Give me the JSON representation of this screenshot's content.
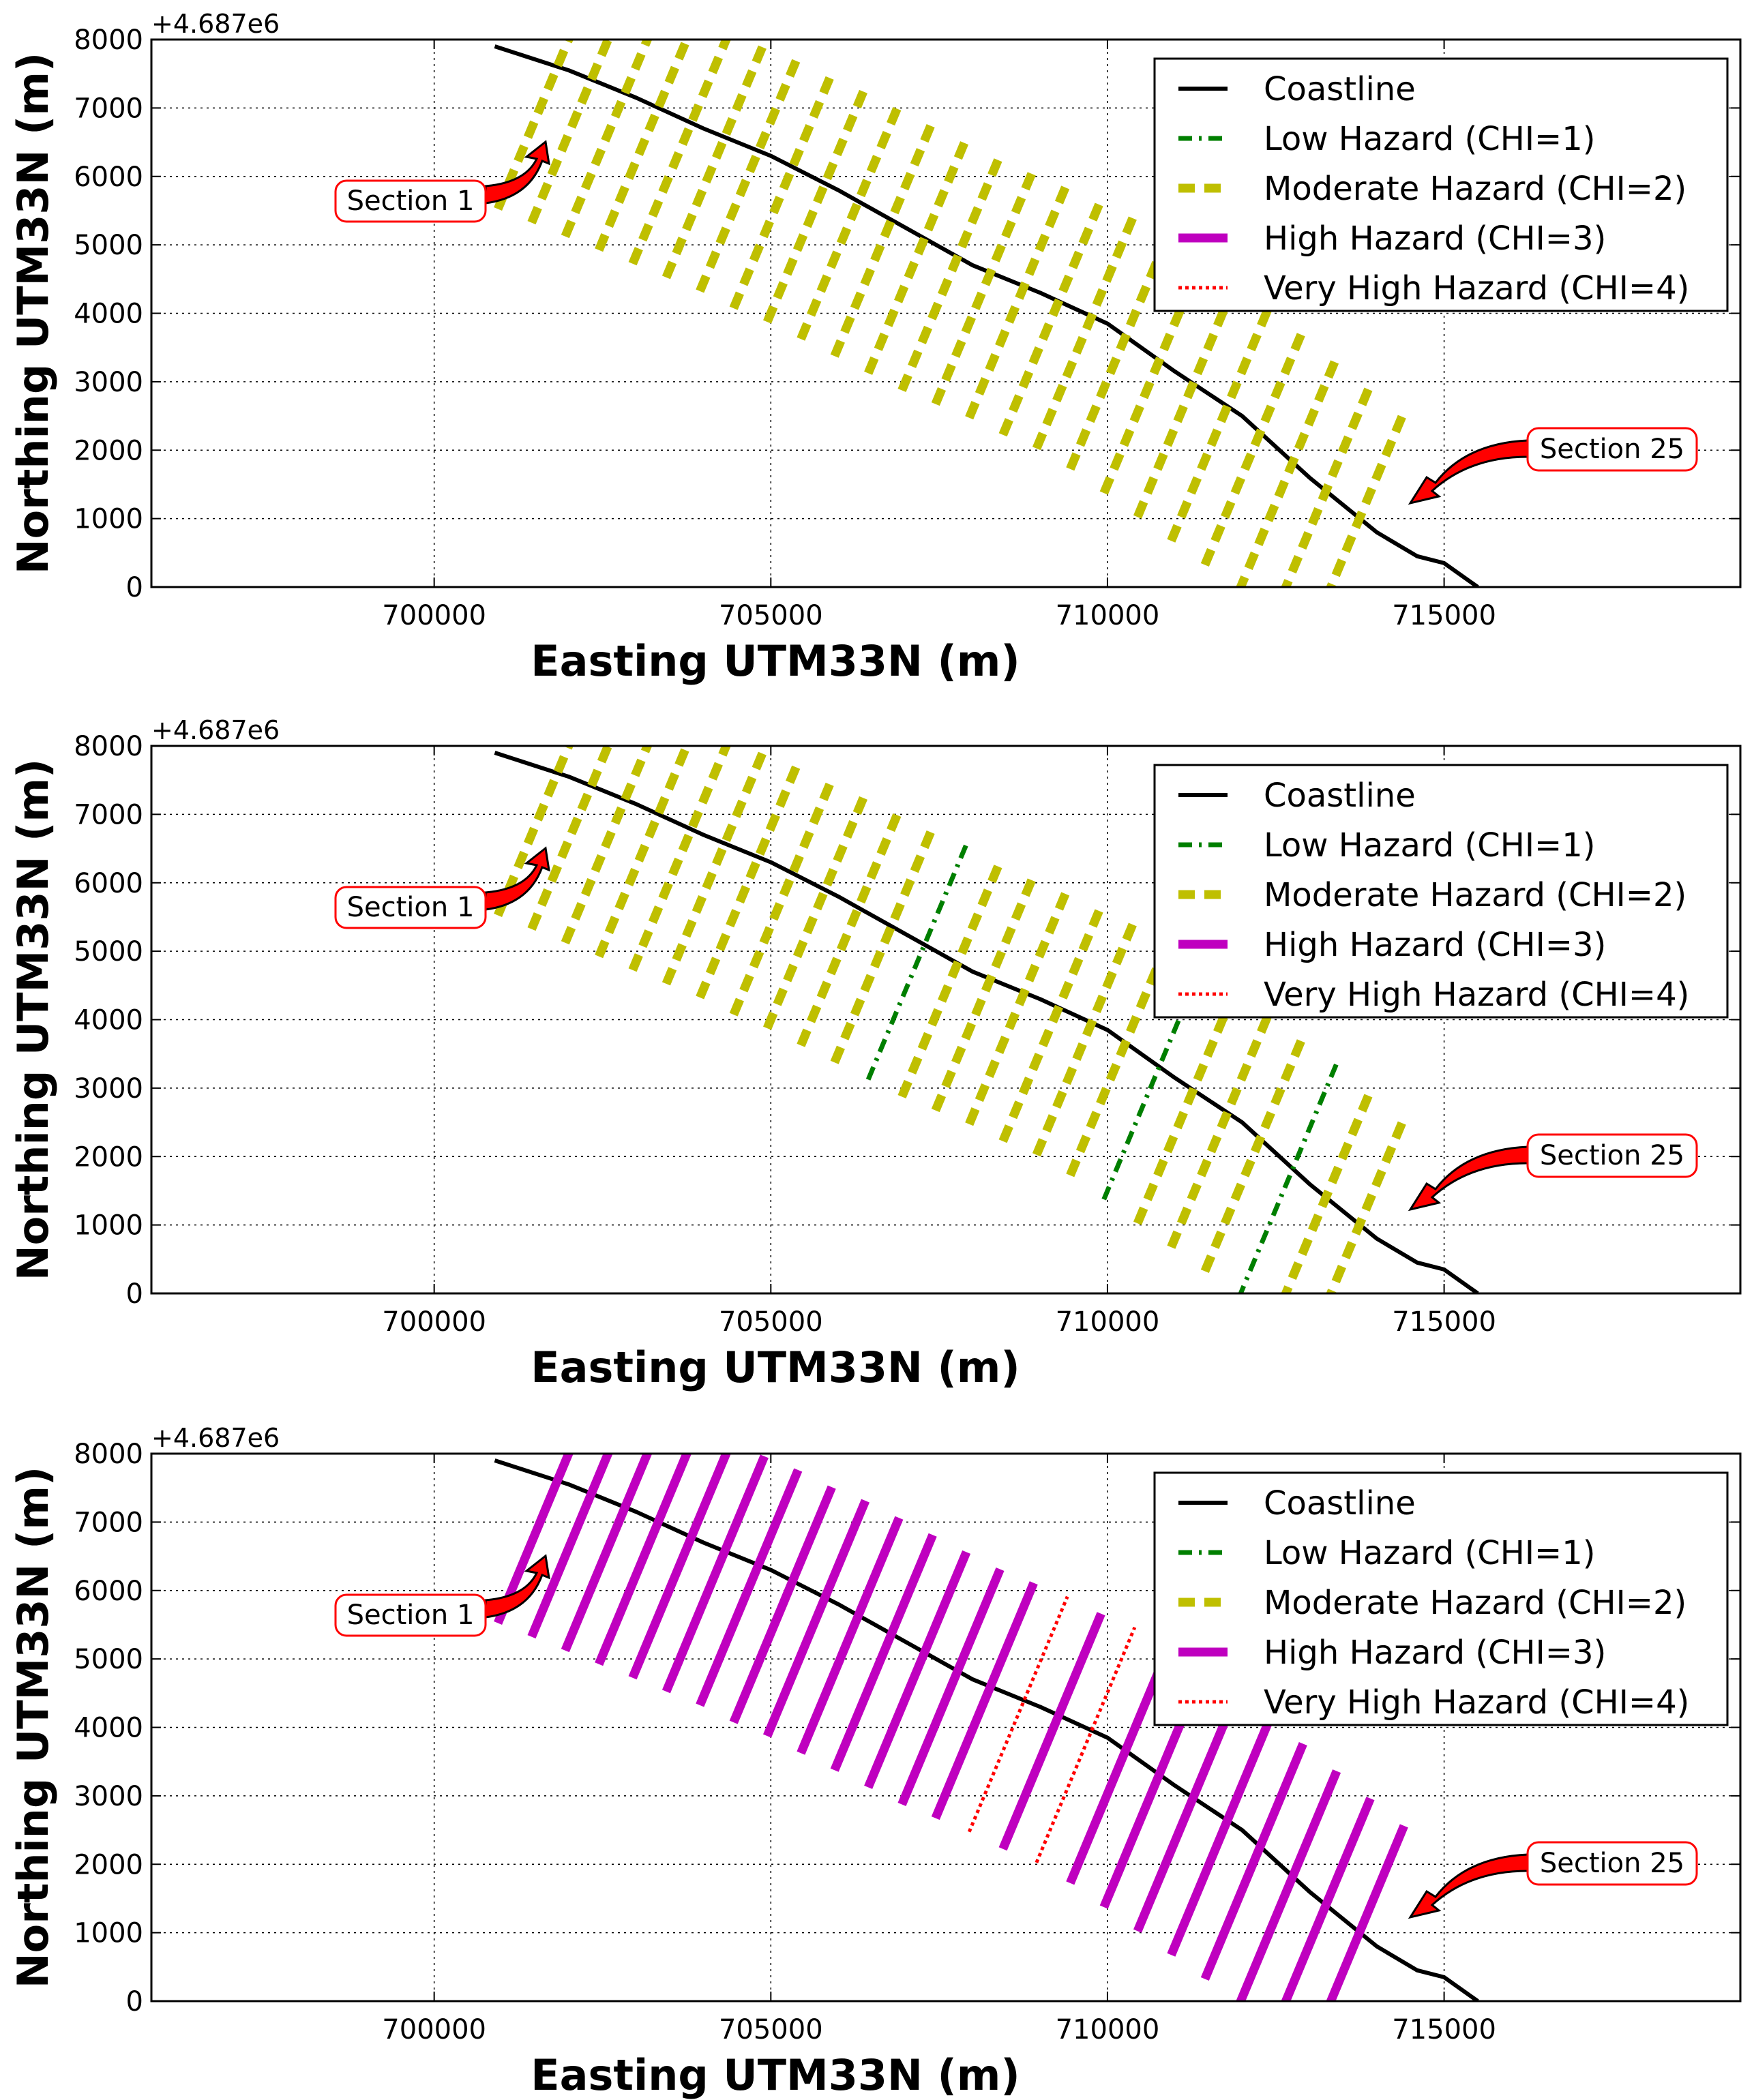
{
  "chart_data": [
    {
      "type": "line",
      "panel": "top",
      "xlabel": "Easting UTM33N (m)",
      "ylabel": "Northing UTM33N (m)",
      "y_offset_label": "+4.687e6",
      "xlim": [
        695800,
        719400
      ],
      "ylim": [
        0,
        8000
      ],
      "xticks": [
        700000,
        705000,
        710000,
        715000
      ],
      "yticks": [
        0,
        1000,
        2000,
        3000,
        4000,
        5000,
        6000,
        7000,
        8000
      ],
      "grid": true,
      "legend_position": "top-right",
      "legend": [
        "Coastline",
        "Low Hazard (CHI=1)",
        "Moderate Hazard (CHI=2)",
        "High Hazard (CHI=3)",
        "Very High Hazard (CHI=4)"
      ],
      "annotations": [
        "Section 1",
        "Section 25"
      ],
      "section_chi": [
        2,
        2,
        2,
        2,
        2,
        2,
        2,
        2,
        2,
        2,
        2,
        2,
        2,
        2,
        2,
        2,
        2,
        2,
        2,
        2,
        2,
        2,
        2,
        2,
        2
      ]
    },
    {
      "type": "line",
      "panel": "middle",
      "xlabel": "Easting UTM33N (m)",
      "ylabel": "Northing UTM33N (m)",
      "y_offset_label": "+4.687e6",
      "xlim": [
        695800,
        719400
      ],
      "ylim": [
        0,
        8000
      ],
      "xticks": [
        700000,
        705000,
        710000,
        715000
      ],
      "yticks": [
        0,
        1000,
        2000,
        3000,
        4000,
        5000,
        6000,
        7000,
        8000
      ],
      "grid": true,
      "legend_position": "top-right",
      "legend": [
        "Coastline",
        "Low Hazard (CHI=1)",
        "Moderate Hazard (CHI=2)",
        "High Hazard (CHI=3)",
        "Very High Hazard (CHI=4)"
      ],
      "annotations": [
        "Section 1",
        "Section 25"
      ],
      "section_chi": [
        2,
        2,
        2,
        2,
        2,
        2,
        2,
        2,
        2,
        2,
        2,
        1,
        2,
        2,
        2,
        2,
        2,
        2,
        1,
        2,
        2,
        2,
        1,
        2,
        2
      ]
    },
    {
      "type": "line",
      "panel": "bottom",
      "xlabel": "Easting UTM33N (m)",
      "ylabel": "Northing UTM33N (m)",
      "y_offset_label": "+4.687e6",
      "xlim": [
        695800,
        719400
      ],
      "ylim": [
        0,
        8000
      ],
      "xticks": [
        700000,
        705000,
        710000,
        715000
      ],
      "yticks": [
        0,
        1000,
        2000,
        3000,
        4000,
        5000,
        6000,
        7000,
        8000
      ],
      "grid": true,
      "legend_position": "top-right",
      "legend": [
        "Coastline",
        "Low Hazard (CHI=1)",
        "Moderate Hazard (CHI=2)",
        "High Hazard (CHI=3)",
        "Very High Hazard (CHI=4)"
      ],
      "annotations": [
        "Section 1",
        "Section 25"
      ],
      "section_chi": [
        3,
        3,
        3,
        3,
        3,
        3,
        3,
        3,
        3,
        3,
        3,
        3,
        3,
        3,
        4,
        3,
        4,
        3,
        3,
        3,
        3,
        3,
        3,
        3,
        3
      ]
    }
  ],
  "coastline": {
    "x": [
      700900,
      702000,
      703000,
      704000,
      705000,
      706000,
      707000,
      708000,
      709000,
      710000,
      711000,
      712000,
      713000,
      714000,
      714600,
      715000,
      715500
    ],
    "y": [
      7900,
      7550,
      7150,
      6700,
      6300,
      5800,
      5250,
      4700,
      4300,
      3850,
      3150,
      2500,
      1600,
      800,
      450,
      350,
      0
    ]
  },
  "sections": {
    "x": [
      701700,
      702200,
      702700,
      703200,
      703700,
      704200,
      704700,
      705200,
      705700,
      706200,
      706700,
      707200,
      707700,
      708200,
      708700,
      709200,
      709700,
      710200,
      710700,
      711200,
      711700,
      712200,
      712700,
      713200,
      713700
    ],
    "y": [
      7300,
      7100,
      6900,
      6700,
      6500,
      6300,
      6100,
      5850,
      5650,
      5400,
      5150,
      4900,
      4650,
      4450,
      4250,
      4000,
      3800,
      3500,
      3150,
      2800,
      2450,
      2100,
      1700,
      1300,
      900
    ]
  },
  "colors": {
    "coastline": "#000000",
    "low": "#007f00",
    "moderate": "#bfbf00",
    "high": "#bf00bf",
    "very_high": "#ff0000",
    "arrow": "#ff0000"
  }
}
